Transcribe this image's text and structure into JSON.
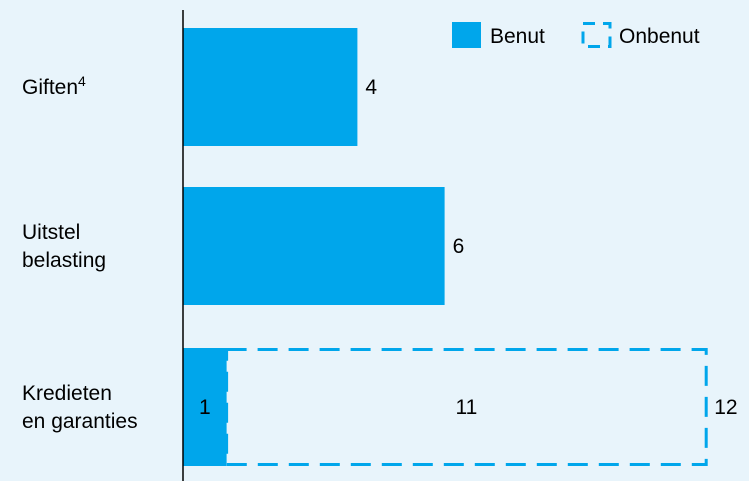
{
  "chart_data": {
    "type": "bar",
    "orientation": "horizontal",
    "stacked": true,
    "categories": [
      {
        "lines": [
          "Giften"
        ],
        "sup": "4"
      },
      {
        "lines": [
          "Uitstel",
          "belasting"
        ],
        "sup": ""
      },
      {
        "lines": [
          "Kredieten",
          "en garanties"
        ],
        "sup": ""
      }
    ],
    "series": [
      {
        "name": "Benut",
        "values": [
          4,
          6,
          1
        ],
        "style": "solid",
        "color": "#00A6EB"
      },
      {
        "name": "Onbenut",
        "values": [
          0,
          0,
          11
        ],
        "style": "dashed",
        "color": "#00A6EB"
      }
    ],
    "value_labels": {
      "benut": [
        "4",
        "6",
        "1"
      ],
      "onbenut": [
        "",
        "",
        "11"
      ],
      "total": [
        "",
        "",
        "12"
      ]
    },
    "xlim": [
      0,
      12
    ],
    "grid": false,
    "legend_position": "top-right",
    "colors": {
      "background": "#E8F4FB",
      "bar": "#00A6EB",
      "axis": "#000000",
      "text": "#000000"
    }
  }
}
